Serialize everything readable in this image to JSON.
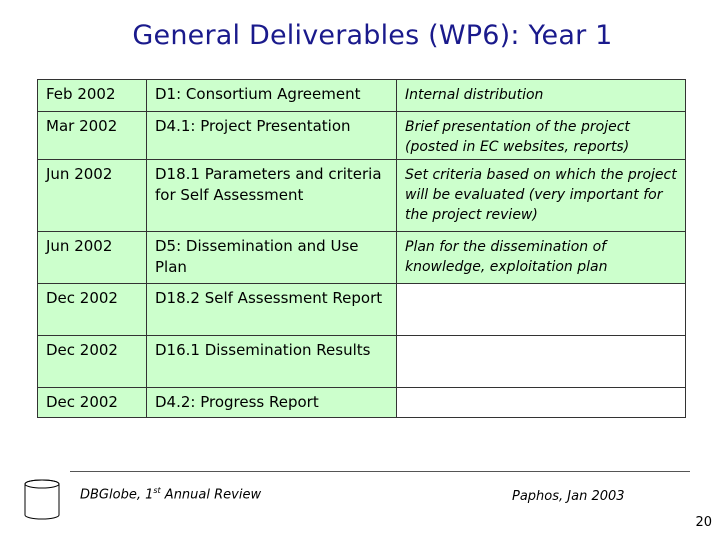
{
  "slide": {
    "title": "General Deliverables (WP6): Year 1",
    "rows": [
      {
        "date": "Feb 2002",
        "deliverable": "D1: Consortium Agreement",
        "note": "Internal distribution"
      },
      {
        "date": "Mar 2002",
        "deliverable": "D4.1: Project Presentation",
        "note": "Brief presentation of the project (posted in EC websites, reports)"
      },
      {
        "date": "Jun 2002",
        "deliverable": "D18.1 Parameters and criteria for Self Assessment",
        "note": "Set criteria based on which the project will be evaluated (very important for the project review)"
      },
      {
        "date": "Jun 2002",
        "deliverable": "D5: Dissemination and Use Plan",
        "note": "Plan for the dissemination of knowledge, exploitation plan"
      },
      {
        "date": "Dec 2002",
        "deliverable": "D18.2 Self Assessment Report",
        "note": ""
      },
      {
        "date": "Dec 2002",
        "deliverable": "D16.1 Dissemination Results",
        "note": ""
      },
      {
        "date": "Dec 2002",
        "deliverable": "D4.2: Progress Report",
        "note": ""
      }
    ],
    "colors": {
      "row_fill": "#ccffcc",
      "title": "#1a1a8c"
    }
  },
  "footer": {
    "left_prefix": "DBGlobe, 1",
    "left_sup": "st",
    "left_suffix": " Annual Review",
    "right": "Paphos, Jan 2003",
    "page": "20",
    "icon": "database-icon"
  }
}
